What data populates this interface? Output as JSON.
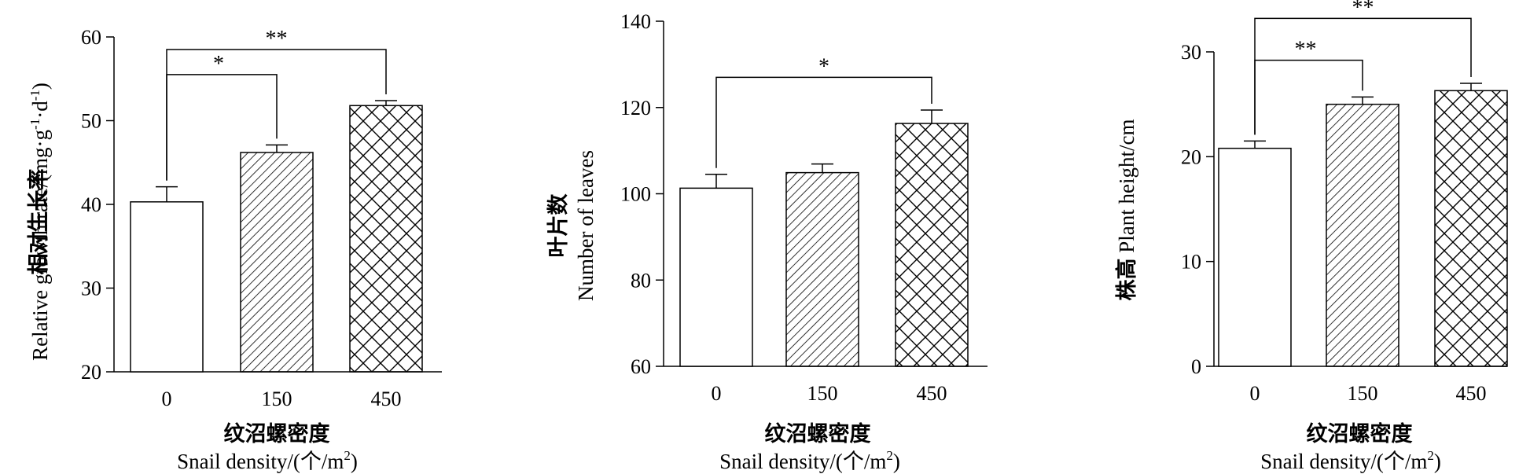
{
  "chart_data": [
    {
      "type": "bar",
      "categories": [
        "0",
        "150",
        "450"
      ],
      "values": [
        40.3,
        46.2,
        51.8
      ],
      "errors": [
        1.8,
        0.9,
        0.6
      ],
      "ylabel_cn": "相对生长率",
      "ylabel_en": "Relative growth rate/(mg·g",
      "ylabel_unit_sup1": "-1",
      "ylabel_unit_mid": "·d",
      "ylabel_unit_sup2": "-1",
      "ylabel_unit_end": ")",
      "xlabel_cn": "纹沼螺密度",
      "xlabel_en": "Snail density/(个/m",
      "xlabel_sup": "2",
      "xlabel_end": ")",
      "ylim": [
        20,
        60
      ],
      "yticks": [
        "20",
        "30",
        "40",
        "50",
        "60"
      ],
      "fills": [
        "none",
        "hatch",
        "crosshatch"
      ],
      "significance": [
        {
          "from": 0,
          "to": 1,
          "label": "*",
          "level": 55.5
        },
        {
          "from": 0,
          "to": 2,
          "label": "**",
          "level": 58.5
        }
      ]
    },
    {
      "type": "bar",
      "categories": [
        "0",
        "150",
        "450"
      ],
      "values": [
        101.3,
        104.9,
        116.3
      ],
      "errors": [
        3.2,
        2.0,
        3.1
      ],
      "ylabel_cn": "叶片数",
      "ylabel_en": "Number of leaves",
      "xlabel_cn": "纹沼螺密度",
      "xlabel_en": "Snail density/(个/m",
      "xlabel_sup": "2",
      "xlabel_end": ")",
      "ylim": [
        60,
        140
      ],
      "yticks": [
        "60",
        "80",
        "100",
        "120",
        "140"
      ],
      "fills": [
        "none",
        "hatch",
        "crosshatch"
      ],
      "significance": [
        {
          "from": 0,
          "to": 2,
          "label": "*",
          "level": 127.0
        }
      ]
    },
    {
      "type": "bar",
      "categories": [
        "0",
        "150",
        "450"
      ],
      "values": [
        20.8,
        25.0,
        26.3
      ],
      "errors": [
        0.7,
        0.7,
        0.7
      ],
      "ylabel_cn": "株高",
      "ylabel_en": "Plant height/cm",
      "xlabel_cn": "纹沼螺密度",
      "xlabel_en": "Snail density/(个/m",
      "xlabel_sup": "2",
      "xlabel_end": ")",
      "ylim": [
        0,
        30
      ],
      "yticks": [
        "0",
        "10",
        "20",
        "30"
      ],
      "fills": [
        "none",
        "hatch",
        "crosshatch"
      ],
      "significance": [
        {
          "from": 0,
          "to": 1,
          "label": "**",
          "level": 29.2
        },
        {
          "from": 0,
          "to": 2,
          "label": "**",
          "level": 33.2
        }
      ]
    }
  ]
}
